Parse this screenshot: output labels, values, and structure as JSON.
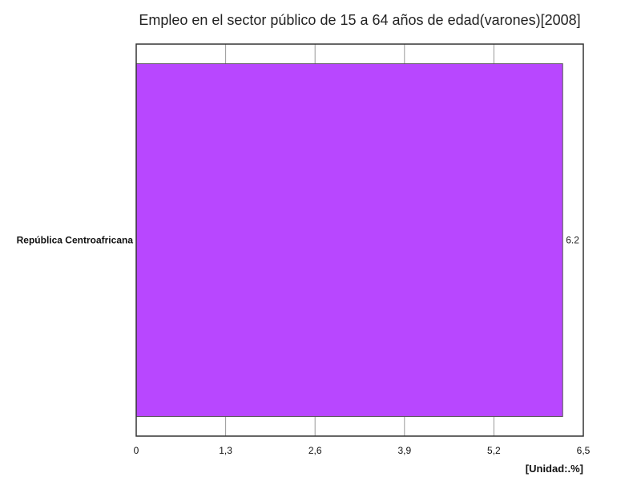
{
  "chart_data": {
    "type": "bar",
    "orientation": "horizontal",
    "title": "Empleo en el sector público de 15 a 64 años de edad(varones)[2008]",
    "categories": [
      "República Centroafricana"
    ],
    "values": [
      6.2
    ],
    "value_labels": [
      "6.2"
    ],
    "xlim": [
      0,
      6.5
    ],
    "x_ticks": [
      0,
      1.3,
      2.6,
      3.9,
      5.2,
      6.5
    ],
    "x_tick_labels": [
      "0",
      "1,3",
      "2,6",
      "3,9",
      "5,2",
      "6,5"
    ],
    "unit_label": "[Unidad:.%]",
    "grid": true,
    "bar_color": "#b847ff",
    "bar_edge_color": "#555555",
    "grid_color": "#999999",
    "frame_color": "#333333"
  }
}
